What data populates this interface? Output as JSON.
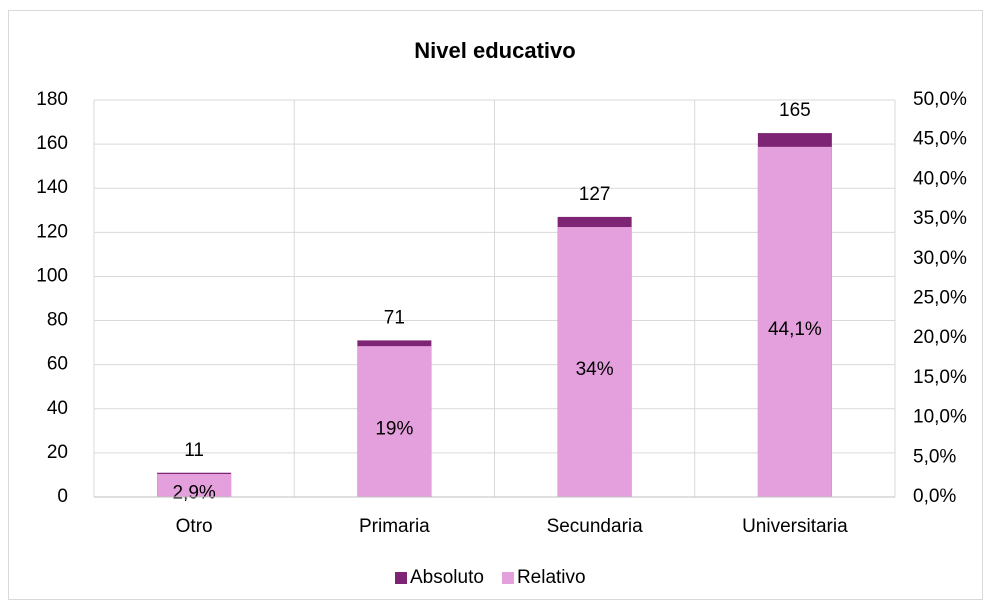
{
  "chart_data": {
    "type": "bar",
    "title": "Nivel educativo",
    "categories": [
      "Otro",
      "Primaria",
      "Secundaria",
      "Universitaria"
    ],
    "series": [
      {
        "name": "Absoluto",
        "color": "#7d2474",
        "values": [
          11,
          71,
          127,
          165
        ]
      },
      {
        "name": "Relativo",
        "color": "#e4a0dc",
        "values": [
          2.9,
          19,
          34,
          44.1
        ],
        "value_labels": [
          "2,9%",
          "19%",
          "34%",
          "44,1%"
        ],
        "axis": "y2"
      }
    ],
    "ylim": [
      0,
      180
    ],
    "yticks": [
      0,
      20,
      40,
      60,
      80,
      100,
      120,
      140,
      160,
      180
    ],
    "y2lim": [
      0,
      50
    ],
    "y2ticks": [
      {
        "value": 0,
        "label": "0,0%"
      },
      {
        "value": 5,
        "label": "5,0%"
      },
      {
        "value": 10,
        "label": "10,0%"
      },
      {
        "value": 15,
        "label": "15,0%"
      },
      {
        "value": 20,
        "label": "20,0%"
      },
      {
        "value": 25,
        "label": "25,0%"
      },
      {
        "value": 30,
        "label": "30,0%"
      },
      {
        "value": 35,
        "label": "35,0%"
      },
      {
        "value": 40,
        "label": "40,0%"
      },
      {
        "value": 45,
        "label": "45,0%"
      },
      {
        "value": 50,
        "label": "50,0%"
      }
    ],
    "grid": true,
    "legend": "bottom"
  }
}
